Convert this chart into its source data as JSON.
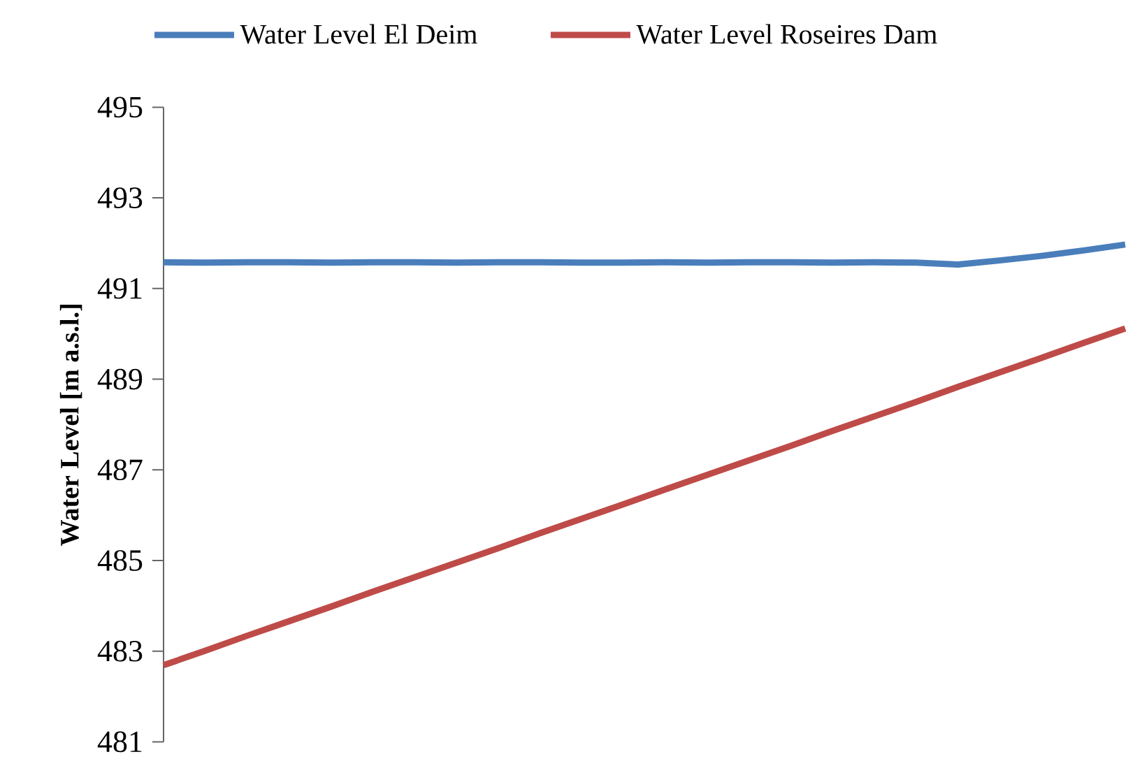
{
  "chart_data": {
    "type": "line",
    "ylabel": "Water Level [m a.s.l.]",
    "categories": [
      null,
      null,
      null,
      null,
      null,
      null,
      null,
      null,
      null,
      null,
      null,
      null,
      null,
      null,
      null,
      null,
      null,
      null,
      null,
      null,
      null,
      null,
      null,
      null
    ],
    "series": [
      {
        "name": "Water Level El Deim",
        "color": "#4a7ebb",
        "values": [
          491.58,
          491.57,
          491.58,
          491.58,
          491.57,
          491.58,
          491.58,
          491.57,
          491.58,
          491.58,
          491.57,
          491.57,
          491.58,
          491.57,
          491.58,
          491.58,
          491.57,
          491.58,
          491.57,
          491.53,
          491.62,
          491.72,
          491.84,
          491.97
        ]
      },
      {
        "name": "Water Level Roseires Dam",
        "color": "#be4b48",
        "values": [
          482.69,
          483.01,
          483.34,
          483.66,
          483.98,
          484.31,
          484.63,
          484.95,
          485.27,
          485.6,
          485.92,
          486.24,
          486.57,
          486.89,
          487.21,
          487.53,
          487.86,
          488.18,
          488.5,
          488.83,
          489.15,
          489.47,
          489.8,
          490.12
        ]
      }
    ],
    "ylim": [
      481,
      495
    ],
    "yticks": [
      481,
      483,
      485,
      487,
      489,
      491,
      493,
      495
    ],
    "legend": "top",
    "tick_labels": "y",
    "line_style": "solid"
  }
}
